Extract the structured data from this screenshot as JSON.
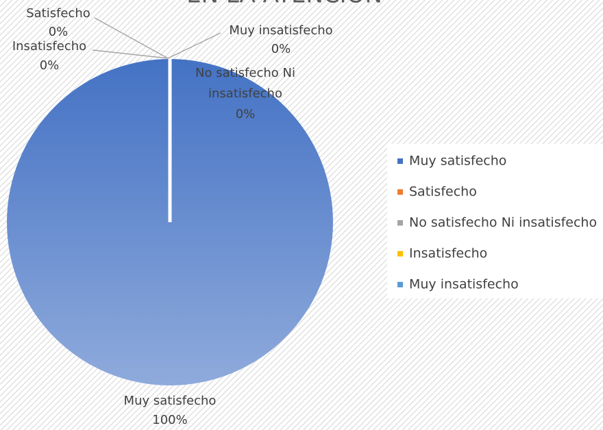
{
  "chart_data": {
    "type": "pie",
    "title": "EN LA ATENCIÓN",
    "categories": [
      "Muy satisfecho",
      "Satisfecho",
      "No satisfecho Ni insatisfecho",
      "Insatisfecho",
      "Muy insatisfecho"
    ],
    "values": [
      100,
      0,
      0,
      0,
      0
    ],
    "value_labels": [
      "100%",
      "0%",
      "0%",
      "0%",
      "0%"
    ],
    "colors": [
      "#4472c4",
      "#ed7d31",
      "#a5a5a5",
      "#ffc000",
      "#5b9bd5"
    ],
    "legend": "right"
  }
}
